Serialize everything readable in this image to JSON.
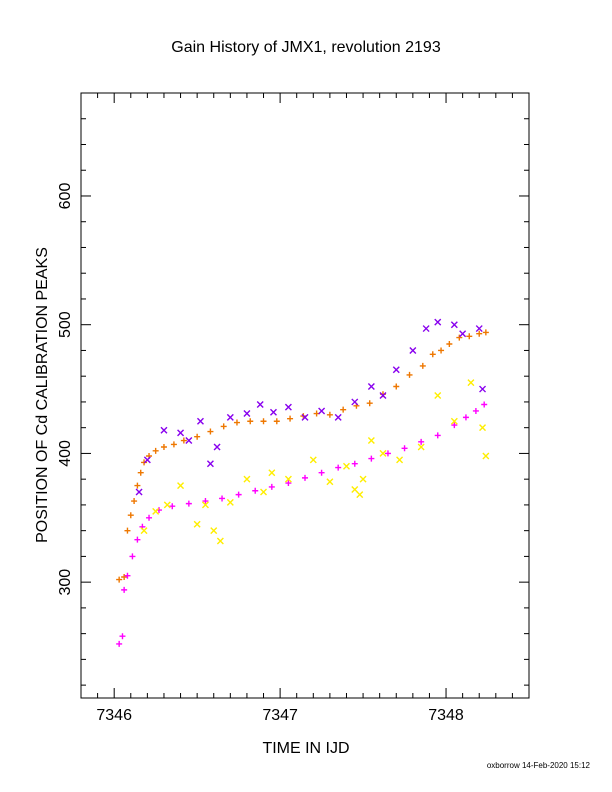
{
  "chart_data": {
    "type": "scatter",
    "title": "Gain History of JMX1, revolution 2193",
    "xlabel": "TIME IN IJD",
    "ylabel": "POSITION OF Cd CALIBRATION PEAKS",
    "xlim": [
      7345.8,
      7348.5
    ],
    "ylim": [
      210,
      680
    ],
    "x_ticks": [
      7346,
      7347,
      7348
    ],
    "x_tick_labels": [
      "7346",
      "7347",
      "7348"
    ],
    "y_ticks": [
      300,
      400,
      500,
      600
    ],
    "y_tick_labels": [
      "300",
      "400",
      "500",
      "600"
    ],
    "grid": false,
    "legend": "none",
    "series": [
      {
        "color": "#ee7700",
        "marker": "plus",
        "points": [
          [
            7346.03,
            302
          ],
          [
            7346.06,
            304
          ],
          [
            7346.08,
            340
          ],
          [
            7346.1,
            352
          ],
          [
            7346.12,
            363
          ],
          [
            7346.14,
            375
          ],
          [
            7346.16,
            385
          ],
          [
            7346.18,
            393
          ],
          [
            7346.21,
            398
          ],
          [
            7346.25,
            402
          ],
          [
            7346.3,
            405
          ],
          [
            7346.36,
            407
          ],
          [
            7346.42,
            410
          ],
          [
            7346.5,
            413
          ],
          [
            7346.58,
            417
          ],
          [
            7346.66,
            421
          ],
          [
            7346.74,
            424
          ],
          [
            7346.82,
            425
          ],
          [
            7346.9,
            425
          ],
          [
            7346.98,
            425
          ],
          [
            7347.06,
            427
          ],
          [
            7347.14,
            429
          ],
          [
            7347.22,
            431
          ],
          [
            7347.3,
            430
          ],
          [
            7347.38,
            434
          ],
          [
            7347.46,
            437
          ],
          [
            7347.54,
            439
          ],
          [
            7347.62,
            446
          ],
          [
            7347.7,
            452
          ],
          [
            7347.78,
            461
          ],
          [
            7347.86,
            468
          ],
          [
            7347.92,
            477
          ],
          [
            7347.97,
            480
          ],
          [
            7348.02,
            485
          ],
          [
            7348.08,
            490
          ],
          [
            7348.14,
            491
          ],
          [
            7348.2,
            493
          ],
          [
            7348.24,
            494
          ]
        ]
      },
      {
        "color": "#8800ee",
        "marker": "cross",
        "points": [
          [
            7346.15,
            370
          ],
          [
            7346.2,
            395
          ],
          [
            7346.3,
            418
          ],
          [
            7346.4,
            416
          ],
          [
            7346.45,
            410
          ],
          [
            7346.52,
            425
          ],
          [
            7346.58,
            392
          ],
          [
            7346.62,
            405
          ],
          [
            7346.7,
            428
          ],
          [
            7346.8,
            431
          ],
          [
            7346.88,
            438
          ],
          [
            7346.96,
            432
          ],
          [
            7347.05,
            436
          ],
          [
            7347.15,
            428
          ],
          [
            7347.25,
            433
          ],
          [
            7347.35,
            428
          ],
          [
            7347.45,
            440
          ],
          [
            7347.55,
            452
          ],
          [
            7347.62,
            445
          ],
          [
            7347.7,
            465
          ],
          [
            7347.8,
            480
          ],
          [
            7347.88,
            497
          ],
          [
            7347.95,
            502
          ],
          [
            7348.05,
            500
          ],
          [
            7348.1,
            493
          ],
          [
            7348.2,
            497
          ],
          [
            7348.22,
            450
          ]
        ]
      },
      {
        "color": "#ff00ff",
        "marker": "plus",
        "points": [
          [
            7346.03,
            252
          ],
          [
            7346.05,
            258
          ],
          [
            7346.06,
            294
          ],
          [
            7346.08,
            305
          ],
          [
            7346.11,
            320
          ],
          [
            7346.14,
            333
          ],
          [
            7346.17,
            343
          ],
          [
            7346.21,
            350
          ],
          [
            7346.27,
            356
          ],
          [
            7346.35,
            359
          ],
          [
            7346.45,
            361
          ],
          [
            7346.55,
            363
          ],
          [
            7346.65,
            365
          ],
          [
            7346.75,
            368
          ],
          [
            7346.85,
            371
          ],
          [
            7346.95,
            374
          ],
          [
            7347.05,
            377
          ],
          [
            7347.15,
            381
          ],
          [
            7347.25,
            385
          ],
          [
            7347.35,
            389
          ],
          [
            7347.45,
            392
          ],
          [
            7347.55,
            396
          ],
          [
            7347.65,
            400
          ],
          [
            7347.75,
            404
          ],
          [
            7347.85,
            409
          ],
          [
            7347.95,
            414
          ],
          [
            7348.05,
            422
          ],
          [
            7348.12,
            428
          ],
          [
            7348.18,
            433
          ],
          [
            7348.23,
            438
          ]
        ]
      },
      {
        "color": "#ffee00",
        "marker": "cross",
        "points": [
          [
            7346.18,
            340
          ],
          [
            7346.25,
            355
          ],
          [
            7346.32,
            360
          ],
          [
            7346.4,
            375
          ],
          [
            7346.5,
            345
          ],
          [
            7346.55,
            360
          ],
          [
            7346.6,
            340
          ],
          [
            7346.64,
            332
          ],
          [
            7346.7,
            362
          ],
          [
            7346.8,
            380
          ],
          [
            7346.9,
            370
          ],
          [
            7346.95,
            385
          ],
          [
            7347.05,
            380
          ],
          [
            7347.2,
            395
          ],
          [
            7347.3,
            378
          ],
          [
            7347.4,
            390
          ],
          [
            7347.45,
            372
          ],
          [
            7347.48,
            368
          ],
          [
            7347.5,
            380
          ],
          [
            7347.55,
            410
          ],
          [
            7347.62,
            400
          ],
          [
            7347.72,
            395
          ],
          [
            7347.85,
            405
          ],
          [
            7347.95,
            445
          ],
          [
            7348.05,
            425
          ],
          [
            7348.15,
            455
          ],
          [
            7348.22,
            420
          ],
          [
            7348.24,
            398
          ]
        ]
      }
    ]
  },
  "footer": {
    "signature": "oxborrow 14-Feb-2020 15:12"
  }
}
